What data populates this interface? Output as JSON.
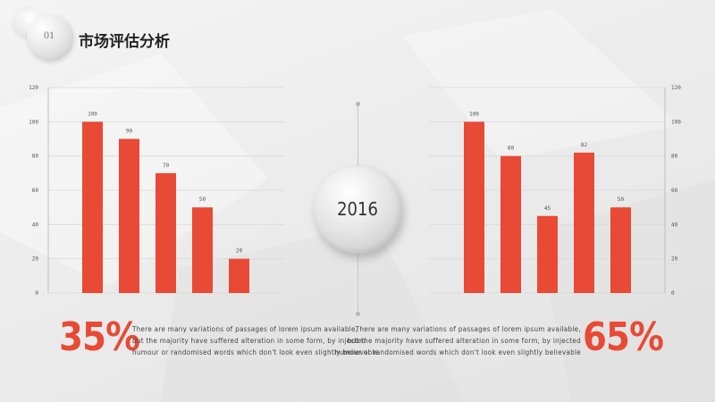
{
  "section": {
    "number": "01",
    "title": "市场评估分析"
  },
  "year": "2016",
  "left": {
    "percent": "35%",
    "description": [
      "There are many variations of passages of lorem ipsum available,",
      "but the majority have suffered alteration in some form, by injected",
      "humour or randomised words which don't look even slightly believable"
    ]
  },
  "right": {
    "percent": "65%",
    "description": [
      "There are many variations of passages of lorem ipsum available,",
      "but the majority have suffered alteration in some form, by injected",
      "humour or randomised words which don't look even slightly believable"
    ]
  },
  "colors": {
    "accent": "#e84a36",
    "grid": "#d9d9d9"
  },
  "chart_data": [
    {
      "type": "bar",
      "ylim": [
        0,
        120
      ],
      "yticks": [
        0,
        20,
        40,
        60,
        80,
        100,
        120
      ],
      "ytick_labels": [
        "0",
        "20",
        "40",
        "60",
        "80",
        "100",
        "120"
      ],
      "values": [
        100,
        90,
        70,
        50,
        20
      ],
      "data_labels": [
        "100",
        "90",
        "70",
        "50",
        "20"
      ],
      "axis_side": "left",
      "grid": true
    },
    {
      "type": "bar",
      "ylim": [
        0,
        120
      ],
      "yticks": [
        0,
        20,
        40,
        60,
        80,
        100,
        120
      ],
      "ytick_labels": [
        "0",
        "20",
        "40",
        "60",
        "80",
        "100",
        "120"
      ],
      "values": [
        100,
        80,
        45,
        82,
        50
      ],
      "data_labels": [
        "100",
        "80",
        "45",
        "82",
        "50"
      ],
      "axis_side": "right",
      "grid": true
    }
  ]
}
